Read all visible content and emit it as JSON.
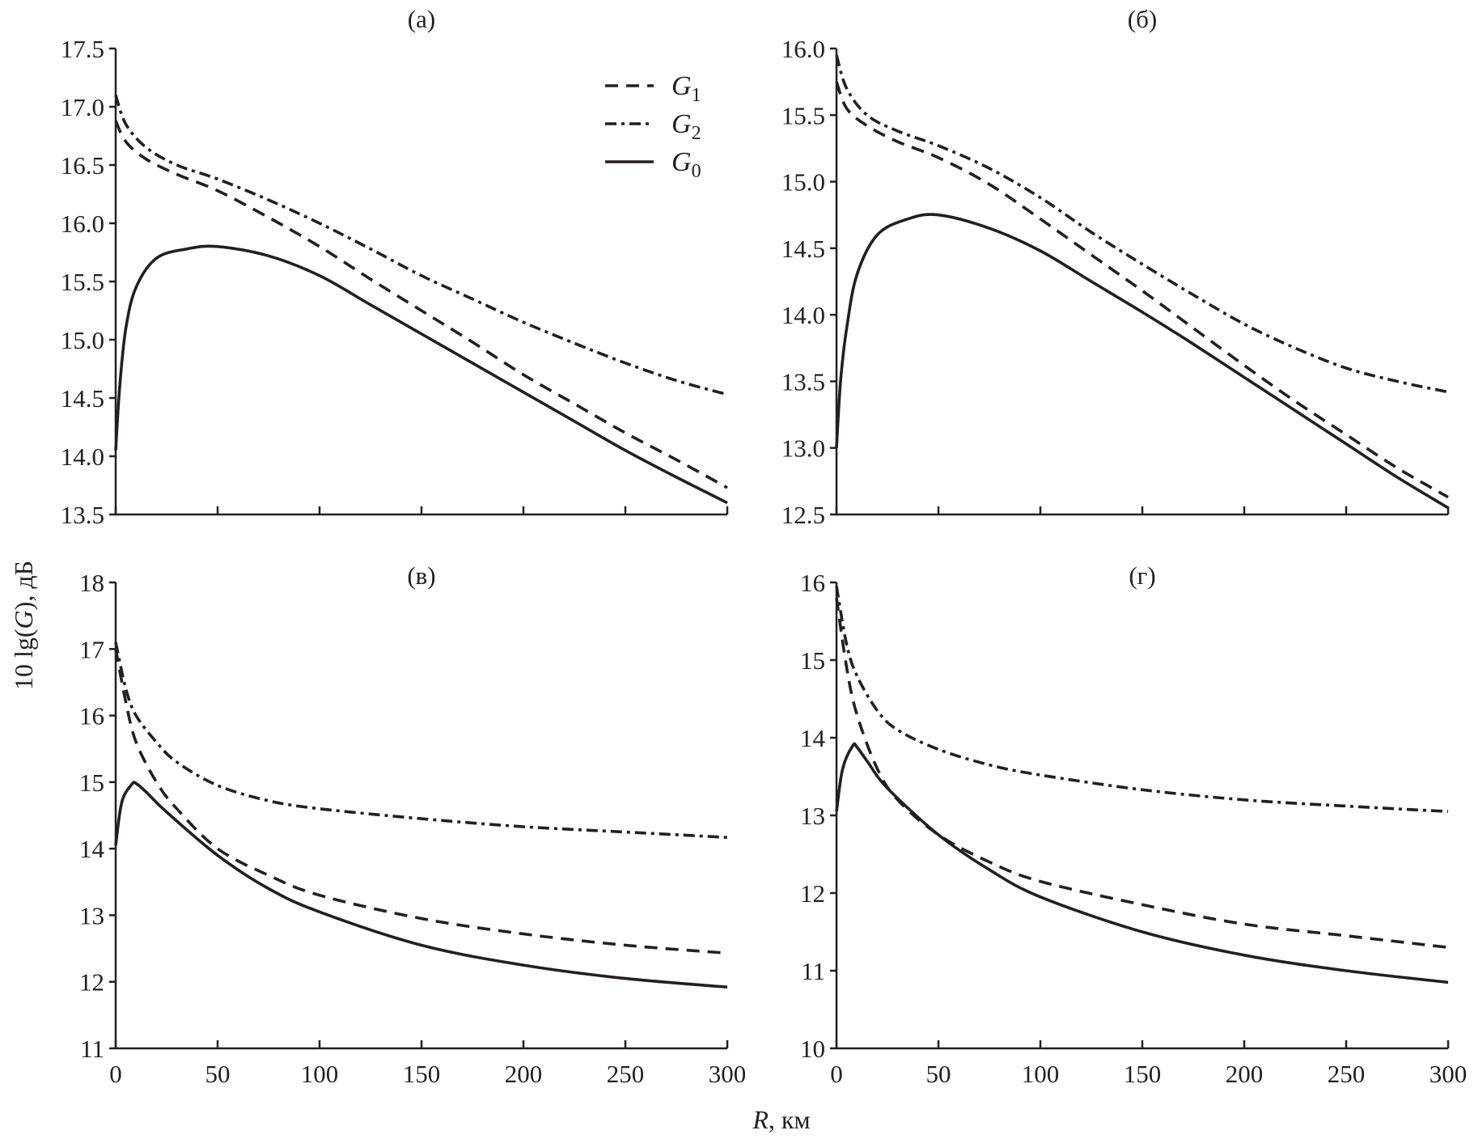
{
  "chart_data": [
    {
      "type": "line",
      "title": "(а)",
      "xlim": [
        0,
        300
      ],
      "ylim": [
        13.5,
        17.5
      ],
      "x_ticks": [
        "0",
        "50",
        "100",
        "150",
        "200",
        "250",
        "300"
      ],
      "x_tick_labels_shown": false,
      "y_ticks": [
        "13.5",
        "14.0",
        "14.5",
        "15.0",
        "15.5",
        "16.0",
        "16.5",
        "17.0",
        "17.5"
      ],
      "legend": "top-right",
      "series": [
        {
          "name": "G1",
          "style": "dashed",
          "x": [
            0,
            5,
            15,
            30,
            50,
            75,
            100,
            125,
            150,
            175,
            200,
            225,
            250,
            275,
            300
          ],
          "y": [
            16.88,
            16.7,
            16.55,
            16.42,
            16.28,
            16.05,
            15.8,
            15.52,
            15.25,
            14.98,
            14.7,
            14.45,
            14.2,
            13.97,
            13.73
          ]
        },
        {
          "name": "G2",
          "style": "dash-dot",
          "x": [
            0,
            5,
            15,
            30,
            50,
            75,
            100,
            125,
            150,
            175,
            200,
            225,
            250,
            275,
            300
          ],
          "y": [
            17.1,
            16.85,
            16.65,
            16.5,
            16.38,
            16.2,
            16.0,
            15.78,
            15.55,
            15.35,
            15.15,
            14.97,
            14.8,
            14.65,
            14.53
          ]
        },
        {
          "name": "G0",
          "style": "solid",
          "x": [
            0,
            2,
            5,
            10,
            20,
            35,
            50,
            75,
            100,
            125,
            150,
            175,
            200,
            225,
            250,
            275,
            300
          ],
          "y": [
            14.05,
            14.6,
            15.1,
            15.45,
            15.7,
            15.78,
            15.8,
            15.72,
            15.55,
            15.3,
            15.05,
            14.8,
            14.55,
            14.3,
            14.05,
            13.82,
            13.6
          ]
        }
      ]
    },
    {
      "type": "line",
      "title": "(б)",
      "xlim": [
        0,
        300
      ],
      "ylim": [
        12.5,
        16.0
      ],
      "x_ticks": [
        "0",
        "50",
        "100",
        "150",
        "200",
        "250",
        "300"
      ],
      "x_tick_labels_shown": false,
      "y_ticks": [
        "12.5",
        "13.0",
        "13.5",
        "14.0",
        "14.5",
        "15.0",
        "15.5",
        "16.0"
      ],
      "series": [
        {
          "name": "G1",
          "style": "dashed",
          "x": [
            0,
            5,
            15,
            30,
            50,
            75,
            100,
            125,
            150,
            175,
            200,
            225,
            250,
            275,
            300
          ],
          "y": [
            15.75,
            15.55,
            15.42,
            15.3,
            15.18,
            14.98,
            14.72,
            14.45,
            14.18,
            13.9,
            13.62,
            13.35,
            13.1,
            12.85,
            12.63
          ]
        },
        {
          "name": "G2",
          "style": "dash-dot",
          "x": [
            0,
            5,
            15,
            30,
            50,
            75,
            100,
            125,
            150,
            175,
            200,
            225,
            250,
            275,
            300
          ],
          "y": [
            15.95,
            15.7,
            15.5,
            15.38,
            15.27,
            15.1,
            14.88,
            14.62,
            14.38,
            14.15,
            13.93,
            13.75,
            13.6,
            13.5,
            13.42
          ]
        },
        {
          "name": "G0",
          "style": "solid",
          "x": [
            0,
            2,
            5,
            10,
            20,
            35,
            50,
            75,
            100,
            125,
            150,
            175,
            200,
            225,
            250,
            275,
            300
          ],
          "y": [
            13.0,
            13.5,
            13.9,
            14.3,
            14.6,
            14.72,
            14.75,
            14.65,
            14.48,
            14.25,
            14.02,
            13.78,
            13.53,
            13.28,
            13.03,
            12.78,
            12.55
          ]
        }
      ]
    },
    {
      "type": "line",
      "title": "(в)",
      "xlim": [
        0,
        300
      ],
      "ylim": [
        11,
        18
      ],
      "x_ticks": [
        "0",
        "50",
        "100",
        "150",
        "200",
        "250",
        "300"
      ],
      "x_tick_labels_shown": true,
      "y_ticks": [
        "11",
        "12",
        "13",
        "14",
        "15",
        "16",
        "17",
        "18"
      ],
      "series": [
        {
          "name": "G1",
          "style": "dashed",
          "x": [
            0,
            5,
            10,
            20,
            30,
            50,
            75,
            100,
            150,
            200,
            250,
            300
          ],
          "y": [
            17.0,
            16.2,
            15.6,
            15.0,
            14.6,
            14.0,
            13.6,
            13.3,
            12.95,
            12.72,
            12.55,
            12.43
          ]
        },
        {
          "name": "G2",
          "style": "dash-dot",
          "x": [
            0,
            5,
            10,
            20,
            30,
            50,
            75,
            100,
            150,
            200,
            250,
            300
          ],
          "y": [
            17.1,
            16.4,
            16.0,
            15.6,
            15.3,
            14.95,
            14.72,
            14.6,
            14.45,
            14.33,
            14.25,
            14.17
          ]
        },
        {
          "name": "G0",
          "style": "solid",
          "x": [
            0,
            3,
            8,
            10,
            15,
            25,
            50,
            75,
            100,
            150,
            200,
            250,
            300
          ],
          "y": [
            14.05,
            14.7,
            14.97,
            14.98,
            14.85,
            14.55,
            13.9,
            13.4,
            13.05,
            12.55,
            12.25,
            12.05,
            11.92
          ]
        }
      ]
    },
    {
      "type": "line",
      "title": "(г)",
      "xlim": [
        0,
        300
      ],
      "ylim": [
        10,
        16
      ],
      "x_ticks": [
        "0",
        "50",
        "100",
        "150",
        "200",
        "250",
        "300"
      ],
      "x_tick_labels_shown": true,
      "y_ticks": [
        "10",
        "11",
        "12",
        "13",
        "14",
        "15",
        "16"
      ],
      "series": [
        {
          "name": "G1",
          "style": "dashed",
          "x": [
            0,
            5,
            10,
            20,
            30,
            50,
            75,
            100,
            150,
            200,
            250,
            300
          ],
          "y": [
            15.8,
            14.9,
            14.3,
            13.6,
            13.2,
            12.75,
            12.4,
            12.15,
            11.85,
            11.6,
            11.45,
            11.3
          ]
        },
        {
          "name": "G2",
          "style": "dash-dot",
          "x": [
            0,
            5,
            10,
            20,
            30,
            50,
            75,
            100,
            150,
            200,
            250,
            300
          ],
          "y": [
            15.95,
            15.2,
            14.8,
            14.35,
            14.1,
            13.85,
            13.65,
            13.52,
            13.33,
            13.2,
            13.12,
            13.05
          ]
        },
        {
          "name": "G0",
          "style": "solid",
          "x": [
            0,
            3,
            8,
            10,
            15,
            25,
            50,
            75,
            100,
            150,
            200,
            250,
            300
          ],
          "y": [
            13.05,
            13.6,
            13.9,
            13.88,
            13.7,
            13.35,
            12.75,
            12.3,
            11.95,
            11.5,
            11.2,
            11.0,
            10.85
          ]
        }
      ]
    }
  ],
  "axes": {
    "xlabel_italic": "R",
    "xlabel_rest": ", км",
    "ylabel_prefix": "10 lg(",
    "ylabel_italic": "G",
    "ylabel_suffix": "), дБ"
  },
  "legend": [
    {
      "base": "G",
      "sub": "1",
      "style": "dashed"
    },
    {
      "base": "G",
      "sub": "2",
      "style": "dash-dot"
    },
    {
      "base": "G",
      "sub": "0",
      "style": "solid"
    }
  ]
}
